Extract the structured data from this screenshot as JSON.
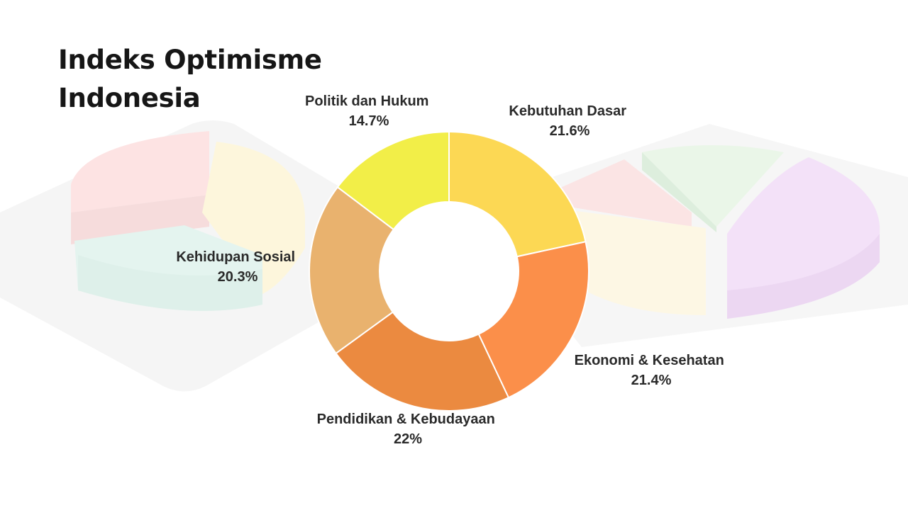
{
  "title_lines": [
    "Indeks Optimisme",
    "Indonesia"
  ],
  "chart_data": {
    "type": "pie",
    "variant": "donut",
    "title": "Indeks Optimisme Indonesia",
    "start_angle_deg": 0,
    "direction": "clockwise",
    "slices": [
      {
        "label": "Kebutuhan Dasar",
        "value": 21.6,
        "value_label": "21.6%",
        "color": "#FCD854"
      },
      {
        "label": "Ekonomi & Kesehatan",
        "value": 21.4,
        "value_label": "21.4%",
        "color": "#FB8F4A"
      },
      {
        "label": "Pendidikan & Kebudayaan",
        "value": 22,
        "value_label": "22%",
        "color": "#EB8A40"
      },
      {
        "label": "Kehidupan Sosial",
        "value": 20.3,
        "value_label": "20.3%",
        "color": "#E9B26E"
      },
      {
        "label": "Politik dan Hukum",
        "value": 14.7,
        "value_label": "14.7%",
        "color": "#F2EE48"
      }
    ]
  }
}
